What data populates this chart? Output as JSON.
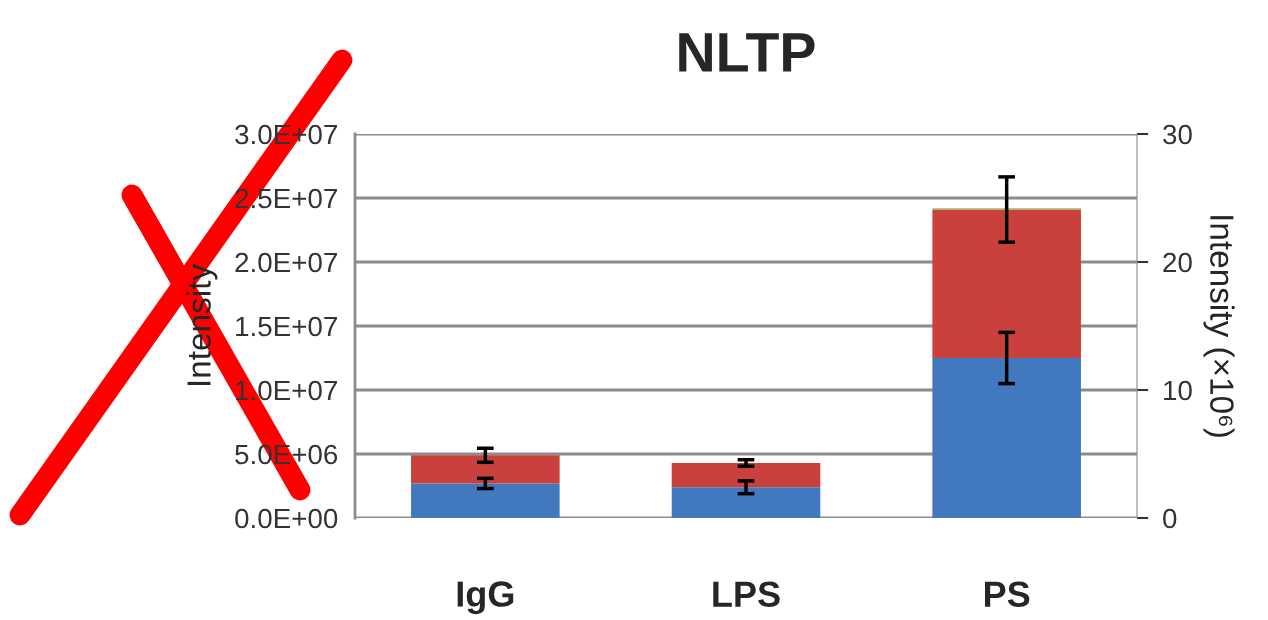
{
  "chart_data": {
    "type": "bar",
    "title": "NLTP",
    "ylabel": "Intensity",
    "y2label": "Intensity (×10⁶)",
    "categories": [
      "IgG",
      "LPS",
      "PS"
    ],
    "stacked": true,
    "series": [
      {
        "color": "#4178be",
        "values": [
          2700000,
          2400000,
          12500000
        ],
        "errors": [
          400000,
          500000,
          2000000
        ]
      },
      {
        "color": "#c9403d",
        "values": [
          2200000,
          1900000,
          11600000
        ],
        "errors": [
          550000,
          250000,
          2550000
        ]
      },
      {
        "color": "#9bbb59",
        "values": [
          null,
          null,
          100000
        ]
      }
    ],
    "ylim": [
      0,
      30000000
    ],
    "yticks": [
      {
        "value": 0,
        "label": "0.0E+00"
      },
      {
        "value": 5000000,
        "label": "5.0E+06"
      },
      {
        "value": 10000000,
        "label": "1.0E+07"
      },
      {
        "value": 15000000,
        "label": "1.5E+07"
      },
      {
        "value": 20000000,
        "label": "2.0E+07"
      },
      {
        "value": 25000000,
        "label": "2.5E+07"
      },
      {
        "value": 30000000,
        "label": "3.0E+07"
      }
    ],
    "y2lim": [
      0,
      30
    ],
    "y2ticks": [
      0,
      10,
      20,
      30
    ],
    "grid": "y"
  }
}
